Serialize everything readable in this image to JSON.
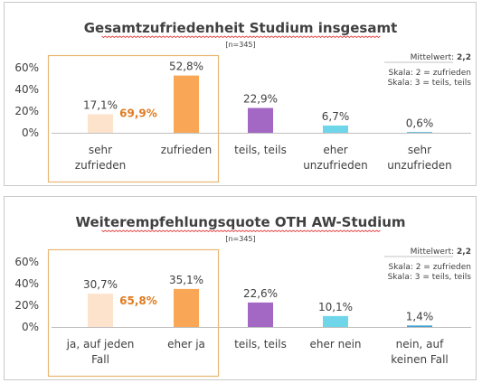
{
  "colors": {
    "light_orange": "#fde3cc",
    "orange": "#f9a657",
    "purple": "#a268c4",
    "cyan": "#6fd6ea",
    "blue": "#3fa3d4",
    "highlight_box": "#e9b774",
    "highlight_text": "#e07b20",
    "axis": "#bfbfbf"
  },
  "chart_data": [
    {
      "type": "bar",
      "title": "Gesamtzufriedenheit Studium insgesamt",
      "subtitle": "[n=345]",
      "mean_label": "Mittelwert:",
      "mean_value": "2,2",
      "scale_notes": [
        "Skala: 2 = zufrieden",
        "Skala: 3 = teils, teils"
      ],
      "categories": [
        [
          "sehr",
          "zufrieden"
        ],
        [
          "zufrieden"
        ],
        [
          "teils, teils"
        ],
        [
          "eher",
          "unzufrieden"
        ],
        [
          "sehr",
          "unzufrieden"
        ]
      ],
      "values": [
        17.1,
        52.8,
        22.9,
        6.7,
        0.6
      ],
      "value_labels": [
        "17,1%",
        "52,8%",
        "22,9%",
        "6,7%",
        "0,6%"
      ],
      "bar_colors": [
        "#fde3cc",
        "#f9a657",
        "#a268c4",
        "#6fd6ea",
        "#3fa3d4"
      ],
      "combined_label": "69,9%",
      "y_ticks": [
        "0%",
        "20%",
        "40%",
        "60%"
      ],
      "ylim": [
        0,
        60
      ]
    },
    {
      "type": "bar",
      "title": "Weiterempfehlungsquote OTH AW-Studium",
      "subtitle": "[n=345]",
      "mean_label": "Mittelwert:",
      "mean_value": "2,2",
      "scale_notes": [
        "Skala: 2 = zufrieden",
        "Skala: 3 = teils, teils"
      ],
      "categories": [
        [
          "ja, auf jeden",
          "Fall"
        ],
        [
          "eher ja"
        ],
        [
          "teils, teils"
        ],
        [
          "eher nein"
        ],
        [
          "nein, auf",
          "keinen Fall"
        ]
      ],
      "values": [
        30.7,
        35.1,
        22.6,
        10.1,
        1.4
      ],
      "value_labels": [
        "30,7%",
        "35,1%",
        "22,6%",
        "10,1%",
        "1,4%"
      ],
      "bar_colors": [
        "#fde3cc",
        "#f9a657",
        "#a268c4",
        "#6fd6ea",
        "#3fa3d4"
      ],
      "combined_label": "65,8%",
      "y_ticks": [
        "0%",
        "20%",
        "40%",
        "60%"
      ],
      "ylim": [
        0,
        60
      ]
    }
  ]
}
